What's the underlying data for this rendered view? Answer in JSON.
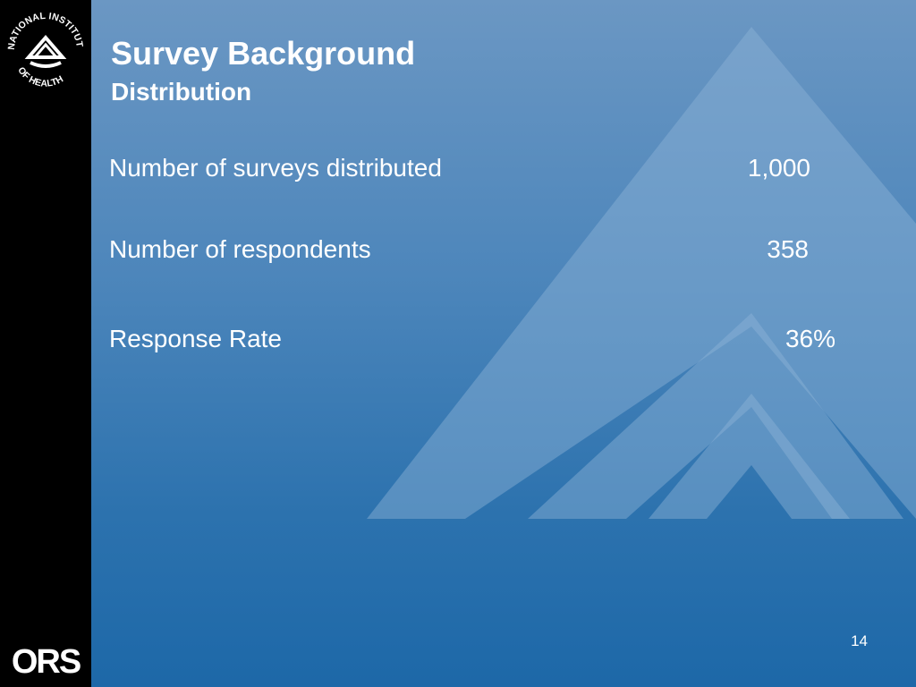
{
  "slide": {
    "title": "Survey Background",
    "subtitle": "Distribution",
    "rows": [
      {
        "label": "Number of surveys distributed",
        "value": "1,000"
      },
      {
        "label": "Number of  respondents",
        "value": "358"
      },
      {
        "label": "Response Rate",
        "value": "36%"
      }
    ],
    "slide_number": "14"
  },
  "logos": {
    "nih": {
      "line1": "NATIONAL INSTITUTES",
      "line2": "OF HEALTH"
    },
    "ors": "ORS"
  },
  "colors": {
    "background_top": "#6b97c3",
    "background_bottom": "#1d68a8",
    "sidebar": "#000000",
    "text": "#ffffff",
    "watermark": "#7aa4cc"
  },
  "icons": {
    "nih": "nih-logo-icon",
    "ors": "ors-logo-icon",
    "watermark": "nih-chevron-watermark"
  }
}
